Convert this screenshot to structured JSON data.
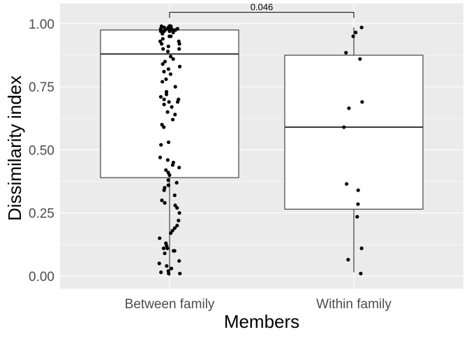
{
  "chart_data": {
    "type": "box",
    "title": "",
    "xlabel": "Members",
    "ylabel": "Dissimilarity index",
    "ylim": [
      -0.05,
      1.08
    ],
    "yticks": [
      0.0,
      0.25,
      0.5,
      0.75,
      1.0
    ],
    "ytick_labels": [
      "0.00",
      "0.25",
      "0.50",
      "0.75",
      "1.00"
    ],
    "grid": true,
    "categories": [
      "Between family",
      "Within family"
    ],
    "boxes": [
      {
        "name": "Between family",
        "q1": 0.39,
        "median": 0.88,
        "q3": 0.975,
        "whisker_low": 0.0,
        "whisker_high": 1.0
      },
      {
        "name": "Within family",
        "q1": 0.265,
        "median": 0.59,
        "q3": 0.875,
        "whisker_low": 0.015,
        "whisker_high": 0.985
      }
    ],
    "points": [
      {
        "category": "Between family",
        "values": [
          0.99,
          0.99,
          0.99,
          0.985,
          0.985,
          0.985,
          0.98,
          0.98,
          0.98,
          0.98,
          0.975,
          0.975,
          0.975,
          0.97,
          0.97,
          0.97,
          0.965,
          0.96,
          0.95,
          0.95,
          0.94,
          0.93,
          0.93,
          0.92,
          0.92,
          0.91,
          0.9,
          0.9,
          0.89,
          0.87,
          0.86,
          0.85,
          0.84,
          0.83,
          0.82,
          0.81,
          0.8,
          0.78,
          0.77,
          0.75,
          0.73,
          0.72,
          0.71,
          0.7,
          0.7,
          0.69,
          0.69,
          0.68,
          0.67,
          0.65,
          0.64,
          0.62,
          0.6,
          0.59,
          0.53,
          0.52,
          0.47,
          0.46,
          0.45,
          0.44,
          0.43,
          0.42,
          0.41,
          0.4,
          0.38,
          0.37,
          0.36,
          0.36,
          0.35,
          0.34,
          0.32,
          0.3,
          0.29,
          0.28,
          0.27,
          0.25,
          0.22,
          0.2,
          0.19,
          0.18,
          0.17,
          0.15,
          0.13,
          0.12,
          0.11,
          0.11,
          0.1,
          0.1,
          0.09,
          0.06,
          0.05,
          0.04,
          0.03,
          0.02,
          0.015,
          0.01,
          0.01
        ]
      },
      {
        "category": "Within family",
        "values": [
          0.985,
          0.965,
          0.95,
          0.885,
          0.86,
          0.69,
          0.665,
          0.59,
          0.365,
          0.34,
          0.285,
          0.235,
          0.11,
          0.065,
          0.01
        ]
      }
    ],
    "annotations": [
      {
        "text": "0.046",
        "from": "Between family",
        "to": "Within family",
        "y": 1.045
      }
    ]
  }
}
